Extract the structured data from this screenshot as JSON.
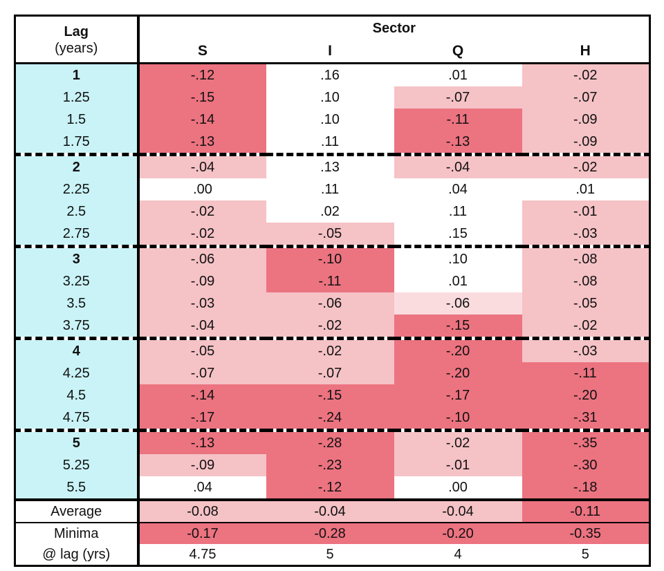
{
  "chart_data": {
    "type": "heatmap",
    "title": "Sector",
    "row_header": {
      "title": "Lag",
      "subtitle": "(years)"
    },
    "columns": [
      "S",
      "I",
      "Q",
      "H"
    ],
    "shade_legend": "cell shade encodes magnitude of negative correlation: dark > light > lighter > white(none/positive)",
    "rows": [
      {
        "lag": "1",
        "bold": true,
        "group_end": false,
        "cells": [
          {
            "v": "-.12",
            "s": "dark"
          },
          {
            "v": ".16",
            "s": "white"
          },
          {
            "v": ".01",
            "s": "white"
          },
          {
            "v": "-.02",
            "s": "light"
          }
        ]
      },
      {
        "lag": "1.25",
        "bold": false,
        "group_end": false,
        "cells": [
          {
            "v": "-.15",
            "s": "dark"
          },
          {
            "v": ".10",
            "s": "white"
          },
          {
            "v": "-.07",
            "s": "light"
          },
          {
            "v": "-.07",
            "s": "light"
          }
        ]
      },
      {
        "lag": "1.5",
        "bold": false,
        "group_end": false,
        "cells": [
          {
            "v": "-.14",
            "s": "dark"
          },
          {
            "v": ".10",
            "s": "white"
          },
          {
            "v": "-.11",
            "s": "dark"
          },
          {
            "v": "-.09",
            "s": "light"
          }
        ]
      },
      {
        "lag": "1.75",
        "bold": false,
        "group_end": true,
        "cells": [
          {
            "v": "-.13",
            "s": "dark"
          },
          {
            "v": ".11",
            "s": "white"
          },
          {
            "v": "-.13",
            "s": "dark"
          },
          {
            "v": "-.09",
            "s": "light"
          }
        ]
      },
      {
        "lag": "2",
        "bold": true,
        "group_end": false,
        "cells": [
          {
            "v": "-.04",
            "s": "light"
          },
          {
            "v": ".13",
            "s": "white"
          },
          {
            "v": "-.04",
            "s": "light"
          },
          {
            "v": "-.02",
            "s": "light"
          }
        ]
      },
      {
        "lag": "2.25",
        "bold": false,
        "group_end": false,
        "cells": [
          {
            "v": ".00",
            "s": "white"
          },
          {
            "v": ".11",
            "s": "white"
          },
          {
            "v": ".04",
            "s": "white"
          },
          {
            "v": ".01",
            "s": "white"
          }
        ]
      },
      {
        "lag": "2.5",
        "bold": false,
        "group_end": false,
        "cells": [
          {
            "v": "-.02",
            "s": "light"
          },
          {
            "v": ".02",
            "s": "white"
          },
          {
            "v": ".11",
            "s": "white"
          },
          {
            "v": "-.01",
            "s": "light"
          }
        ]
      },
      {
        "lag": "2.75",
        "bold": false,
        "group_end": true,
        "cells": [
          {
            "v": "-.02",
            "s": "light"
          },
          {
            "v": "-.05",
            "s": "light"
          },
          {
            "v": ".15",
            "s": "white"
          },
          {
            "v": "-.03",
            "s": "light"
          }
        ]
      },
      {
        "lag": "3",
        "bold": true,
        "group_end": false,
        "cells": [
          {
            "v": "-.06",
            "s": "light"
          },
          {
            "v": "-.10",
            "s": "dark"
          },
          {
            "v": ".10",
            "s": "white"
          },
          {
            "v": "-.08",
            "s": "light"
          }
        ]
      },
      {
        "lag": "3.25",
        "bold": false,
        "group_end": false,
        "cells": [
          {
            "v": "-.09",
            "s": "light"
          },
          {
            "v": "-.11",
            "s": "dark"
          },
          {
            "v": ".01",
            "s": "white"
          },
          {
            "v": "-.08",
            "s": "light"
          }
        ]
      },
      {
        "lag": "3.5",
        "bold": false,
        "group_end": false,
        "cells": [
          {
            "v": "-.03",
            "s": "light"
          },
          {
            "v": "-.06",
            "s": "light"
          },
          {
            "v": "-.06",
            "s": "lighter"
          },
          {
            "v": "-.05",
            "s": "light"
          }
        ]
      },
      {
        "lag": "3.75",
        "bold": false,
        "group_end": true,
        "cells": [
          {
            "v": "-.04",
            "s": "light"
          },
          {
            "v": "-.02",
            "s": "light"
          },
          {
            "v": "-.15",
            "s": "dark"
          },
          {
            "v": "-.02",
            "s": "light"
          }
        ]
      },
      {
        "lag": "4",
        "bold": true,
        "group_end": false,
        "cells": [
          {
            "v": "-.05",
            "s": "light"
          },
          {
            "v": "-.02",
            "s": "light"
          },
          {
            "v": "-.20",
            "s": "dark"
          },
          {
            "v": "-.03",
            "s": "light"
          }
        ]
      },
      {
        "lag": "4.25",
        "bold": false,
        "group_end": false,
        "cells": [
          {
            "v": "-.07",
            "s": "light"
          },
          {
            "v": "-.07",
            "s": "light"
          },
          {
            "v": "-.20",
            "s": "dark"
          },
          {
            "v": "-.11",
            "s": "dark"
          }
        ]
      },
      {
        "lag": "4.5",
        "bold": false,
        "group_end": false,
        "cells": [
          {
            "v": "-.14",
            "s": "dark"
          },
          {
            "v": "-.15",
            "s": "dark"
          },
          {
            "v": "-.17",
            "s": "dark"
          },
          {
            "v": "-.20",
            "s": "dark"
          }
        ]
      },
      {
        "lag": "4.75",
        "bold": false,
        "group_end": true,
        "cells": [
          {
            "v": "-.17",
            "s": "dark"
          },
          {
            "v": "-.24",
            "s": "dark"
          },
          {
            "v": "-.10",
            "s": "dark"
          },
          {
            "v": "-.31",
            "s": "dark"
          }
        ]
      },
      {
        "lag": "5",
        "bold": true,
        "group_end": false,
        "cells": [
          {
            "v": "-.13",
            "s": "dark"
          },
          {
            "v": "-.28",
            "s": "dark"
          },
          {
            "v": "-.02",
            "s": "light"
          },
          {
            "v": "-.35",
            "s": "dark"
          }
        ]
      },
      {
        "lag": "5.25",
        "bold": false,
        "group_end": false,
        "cells": [
          {
            "v": "-.09",
            "s": "light"
          },
          {
            "v": "-.23",
            "s": "dark"
          },
          {
            "v": "-.01",
            "s": "light"
          },
          {
            "v": "-.30",
            "s": "dark"
          }
        ]
      },
      {
        "lag": "5.5",
        "bold": false,
        "group_end": false,
        "cells": [
          {
            "v": ".04",
            "s": "white"
          },
          {
            "v": "-.12",
            "s": "dark"
          },
          {
            "v": ".00",
            "s": "white"
          },
          {
            "v": "-.18",
            "s": "dark"
          }
        ]
      }
    ],
    "summary": [
      {
        "label": "Average",
        "cells": [
          {
            "v": "-0.08",
            "s": "light"
          },
          {
            "v": "-0.04",
            "s": "light"
          },
          {
            "v": "-0.04",
            "s": "light"
          },
          {
            "v": "-0.11",
            "s": "dark"
          }
        ]
      },
      {
        "label": "Minima",
        "cells": [
          {
            "v": "-0.17",
            "s": "dark"
          },
          {
            "v": "-0.28",
            "s": "dark"
          },
          {
            "v": "-0.20",
            "s": "dark"
          },
          {
            "v": "-0.35",
            "s": "dark"
          }
        ]
      },
      {
        "label": "@ lag (yrs)",
        "cells": [
          {
            "v": "4.75",
            "s": "white"
          },
          {
            "v": "5",
            "s": "white"
          },
          {
            "v": "4",
            "s": "white"
          },
          {
            "v": "5",
            "s": "white"
          }
        ]
      }
    ],
    "colors": {
      "dark": "#ec7380",
      "light": "#f5c2c6",
      "lighter": "#fadcde",
      "white": "#ffffff",
      "lag_column": "#c9f3f7",
      "border": "#000000"
    }
  }
}
